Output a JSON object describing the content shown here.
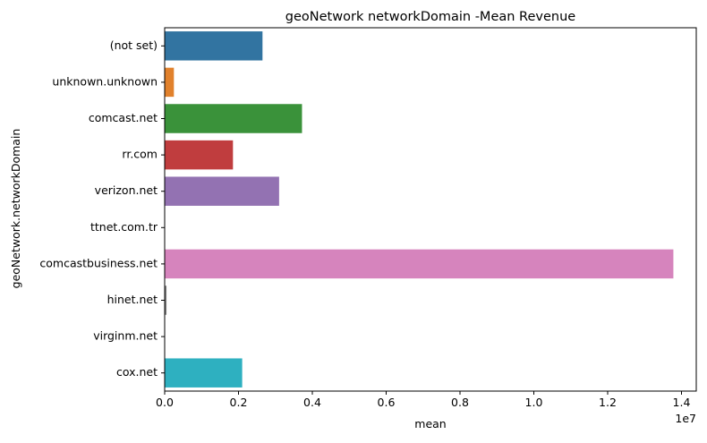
{
  "chart_data": {
    "type": "bar",
    "orientation": "horizontal",
    "title": "geoNetwork networkDomain -Mean Revenue",
    "xlabel": "mean",
    "ylabel": "geoNetwork.networkDomain",
    "x_offset_label": "1e7",
    "xlim": [
      0,
      14400000
    ],
    "xticks": [
      0,
      2000000,
      4000000,
      6000000,
      8000000,
      10000000,
      12000000,
      14000000
    ],
    "xtick_labels": [
      "0.0",
      "0.2",
      "0.4",
      "0.6",
      "0.8",
      "1.0",
      "1.2",
      "1.4"
    ],
    "grid": false,
    "categories": [
      "(not set)",
      "unknown.unknown",
      "comcast.net",
      "rr.com",
      "verizon.net",
      "ttnet.com.tr",
      "comcastbusiness.net",
      "hinet.net",
      "virginm.net",
      "cox.net"
    ],
    "values": [
      2650000,
      250000,
      3720000,
      1850000,
      3100000,
      0,
      13780000,
      50000,
      0,
      2100000
    ],
    "colors": [
      "#3274a1",
      "#e1812c",
      "#3a923a",
      "#c03d3e",
      "#9372b2",
      "#845b53",
      "#d684bd",
      "#7f7f7f",
      "#a9aa35",
      "#2eb0c0"
    ]
  }
}
